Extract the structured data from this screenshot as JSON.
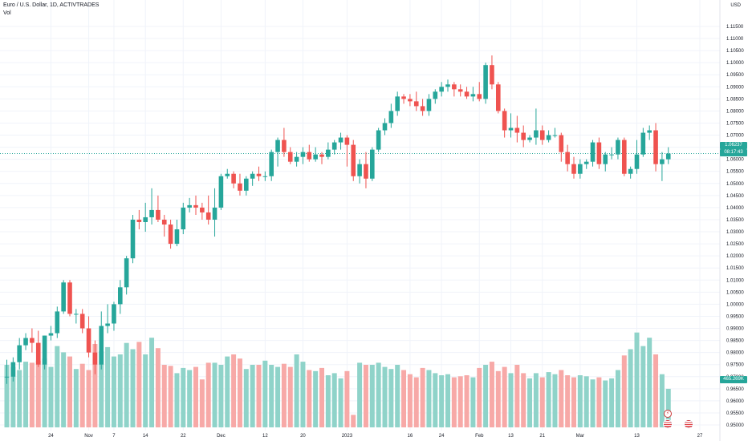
{
  "header": {
    "title": "Euro / U.S. Dollar, 1D, ACTIVTRADES",
    "volume_label": "Vol"
  },
  "price_axis": {
    "unit": "USD",
    "current_price": "1.06237",
    "countdown": "08:17:43",
    "volume_value": "465.269K"
  },
  "events": {
    "bolt_icon": "lightning-icon",
    "flag_icon": "us-flag-icon"
  },
  "colors": {
    "up": "#26a69a",
    "down": "#ef5350",
    "up_volume": "#8fd3c9",
    "down_volume": "#f7a9a7",
    "grid": "#f0f3fa",
    "last_price_line": "#26a69a"
  },
  "chart_data": {
    "type": "candlestick",
    "title": "Euro / U.S. Dollar, 1D, ACTIVTRADES",
    "ylabel": "USD",
    "ylim": [
      0.945,
      1.117
    ],
    "y_ticks": [
      "1.11500",
      "1.11000",
      "1.10500",
      "1.10000",
      "1.09500",
      "1.09000",
      "1.08500",
      "1.08000",
      "1.07500",
      "1.07000",
      "1.06500",
      "1.06000",
      "1.05500",
      "1.05000",
      "1.04500",
      "1.04000",
      "1.03500",
      "1.03000",
      "1.02500",
      "1.02000",
      "1.01500",
      "1.01000",
      "1.00500",
      "1.00000",
      "0.99500",
      "0.99000",
      "0.98500",
      "0.98000",
      "0.97500",
      "0.97000",
      "0.96500",
      "0.96000",
      "0.95500",
      "0.95000"
    ],
    "x_ticks": [
      {
        "label": "24",
        "index": 7
      },
      {
        "label": "Nov",
        "index": 13
      },
      {
        "label": "7",
        "index": 17
      },
      {
        "label": "14",
        "index": 22
      },
      {
        "label": "22",
        "index": 28
      },
      {
        "label": "Dec",
        "index": 34
      },
      {
        "label": "12",
        "index": 41
      },
      {
        "label": "20",
        "index": 47
      },
      {
        "label": "2023",
        "index": 54
      },
      {
        "label": "16",
        "index": 64
      },
      {
        "label": "24",
        "index": 69
      },
      {
        "label": "Feb",
        "index": 75
      },
      {
        "label": "13",
        "index": 80
      },
      {
        "label": "21",
        "index": 85
      },
      {
        "label": "Mar",
        "index": 91
      },
      {
        "label": "13",
        "index": 100
      },
      {
        "label": "27",
        "index": 110
      }
    ],
    "candles": [
      {
        "o": 0.97,
        "h": 0.977,
        "l": 0.967,
        "c": 0.97
      },
      {
        "o": 0.97,
        "h": 0.978,
        "l": 0.968,
        "c": 0.976
      },
      {
        "o": 0.976,
        "h": 0.986,
        "l": 0.973,
        "c": 0.983
      },
      {
        "o": 0.983,
        "h": 0.988,
        "l": 0.981,
        "c": 0.986
      },
      {
        "o": 0.986,
        "h": 0.99,
        "l": 0.98,
        "c": 0.984
      },
      {
        "o": 0.984,
        "h": 0.989,
        "l": 0.974,
        "c": 0.975
      },
      {
        "o": 0.975,
        "h": 0.987,
        "l": 0.973,
        "c": 0.987
      },
      {
        "o": 0.987,
        "h": 0.991,
        "l": 0.985,
        "c": 0.988
      },
      {
        "o": 0.988,
        "h": 0.999,
        "l": 0.986,
        "c": 0.997
      },
      {
        "o": 0.997,
        "h": 1.01,
        "l": 0.996,
        "c": 1.009
      },
      {
        "o": 1.009,
        "h": 1.01,
        "l": 0.995,
        "c": 0.996
      },
      {
        "o": 0.996,
        "h": 0.998,
        "l": 0.992,
        "c": 0.996
      },
      {
        "o": 0.996,
        "h": 0.998,
        "l": 0.988,
        "c": 0.99
      },
      {
        "o": 0.99,
        "h": 0.995,
        "l": 0.978,
        "c": 0.98
      },
      {
        "o": 0.98,
        "h": 0.985,
        "l": 0.971,
        "c": 0.975
      },
      {
        "o": 0.975,
        "h": 0.997,
        "l": 0.973,
        "c": 0.991
      },
      {
        "o": 0.991,
        "h": 1.0,
        "l": 0.988,
        "c": 0.992
      },
      {
        "o": 0.992,
        "h": 1.001,
        "l": 0.989,
        "c": 1.0
      },
      {
        "o": 1.0,
        "h": 1.01,
        "l": 0.996,
        "c": 1.007
      },
      {
        "o": 1.007,
        "h": 1.02,
        "l": 1.004,
        "c": 1.019
      },
      {
        "o": 1.019,
        "h": 1.037,
        "l": 1.017,
        "c": 1.035
      },
      {
        "o": 1.035,
        "h": 1.039,
        "l": 1.031,
        "c": 1.034
      },
      {
        "o": 1.034,
        "h": 1.042,
        "l": 1.03,
        "c": 1.036
      },
      {
        "o": 1.036,
        "h": 1.048,
        "l": 1.033,
        "c": 1.039
      },
      {
        "o": 1.039,
        "h": 1.045,
        "l": 1.034,
        "c": 1.035
      },
      {
        "o": 1.035,
        "h": 1.037,
        "l": 1.028,
        "c": 1.033
      },
      {
        "o": 1.033,
        "h": 1.035,
        "l": 1.023,
        "c": 1.025
      },
      {
        "o": 1.025,
        "h": 1.035,
        "l": 1.024,
        "c": 1.031
      },
      {
        "o": 1.031,
        "h": 1.042,
        "l": 1.029,
        "c": 1.04
      },
      {
        "o": 1.04,
        "h": 1.044,
        "l": 1.038,
        "c": 1.041
      },
      {
        "o": 1.041,
        "h": 1.045,
        "l": 1.037,
        "c": 1.04
      },
      {
        "o": 1.04,
        "h": 1.042,
        "l": 1.035,
        "c": 1.038
      },
      {
        "o": 1.038,
        "h": 1.045,
        "l": 1.033,
        "c": 1.035
      },
      {
        "o": 1.035,
        "h": 1.048,
        "l": 1.028,
        "c": 1.04
      },
      {
        "o": 1.04,
        "h": 1.054,
        "l": 1.039,
        "c": 1.053
      },
      {
        "o": 1.053,
        "h": 1.056,
        "l": 1.052,
        "c": 1.054
      },
      {
        "o": 1.054,
        "h": 1.055,
        "l": 1.048,
        "c": 1.05
      },
      {
        "o": 1.05,
        "h": 1.054,
        "l": 1.045,
        "c": 1.047
      },
      {
        "o": 1.047,
        "h": 1.053,
        "l": 1.045,
        "c": 1.052
      },
      {
        "o": 1.052,
        "h": 1.055,
        "l": 1.049,
        "c": 1.054
      },
      {
        "o": 1.054,
        "h": 1.057,
        "l": 1.051,
        "c": 1.053
      },
      {
        "o": 1.053,
        "h": 1.055,
        "l": 1.051,
        "c": 1.053
      },
      {
        "o": 1.053,
        "h": 1.064,
        "l": 1.051,
        "c": 1.063
      },
      {
        "o": 1.063,
        "h": 1.069,
        "l": 1.057,
        "c": 1.068
      },
      {
        "o": 1.068,
        "h": 1.073,
        "l": 1.061,
        "c": 1.063
      },
      {
        "o": 1.063,
        "h": 1.065,
        "l": 1.058,
        "c": 1.059
      },
      {
        "o": 1.059,
        "h": 1.063,
        "l": 1.057,
        "c": 1.061
      },
      {
        "o": 1.061,
        "h": 1.065,
        "l": 1.058,
        "c": 1.063
      },
      {
        "o": 1.063,
        "h": 1.066,
        "l": 1.059,
        "c": 1.06
      },
      {
        "o": 1.06,
        "h": 1.065,
        "l": 1.059,
        "c": 1.062
      },
      {
        "o": 1.062,
        "h": 1.063,
        "l": 1.058,
        "c": 1.061
      },
      {
        "o": 1.061,
        "h": 1.067,
        "l": 1.06,
        "c": 1.064
      },
      {
        "o": 1.064,
        "h": 1.068,
        "l": 1.062,
        "c": 1.067
      },
      {
        "o": 1.067,
        "h": 1.071,
        "l": 1.064,
        "c": 1.069
      },
      {
        "o": 1.069,
        "h": 1.07,
        "l": 1.057,
        "c": 1.066
      },
      {
        "o": 1.066,
        "h": 1.068,
        "l": 1.051,
        "c": 1.053
      },
      {
        "o": 1.053,
        "h": 1.06,
        "l": 1.05,
        "c": 1.058
      },
      {
        "o": 1.058,
        "h": 1.063,
        "l": 1.048,
        "c": 1.052
      },
      {
        "o": 1.052,
        "h": 1.065,
        "l": 1.051,
        "c": 1.064
      },
      {
        "o": 1.064,
        "h": 1.073,
        "l": 1.063,
        "c": 1.072
      },
      {
        "o": 1.072,
        "h": 1.077,
        "l": 1.07,
        "c": 1.075
      },
      {
        "o": 1.075,
        "h": 1.083,
        "l": 1.073,
        "c": 1.08
      },
      {
        "o": 1.08,
        "h": 1.088,
        "l": 1.078,
        "c": 1.086
      },
      {
        "o": 1.086,
        "h": 1.087,
        "l": 1.083,
        "c": 1.085
      },
      {
        "o": 1.085,
        "h": 1.087,
        "l": 1.082,
        "c": 1.084
      },
      {
        "o": 1.084,
        "h": 1.088,
        "l": 1.08,
        "c": 1.082
      },
      {
        "o": 1.082,
        "h": 1.085,
        "l": 1.078,
        "c": 1.08
      },
      {
        "o": 1.08,
        "h": 1.087,
        "l": 1.078,
        "c": 1.085
      },
      {
        "o": 1.085,
        "h": 1.089,
        "l": 1.083,
        "c": 1.088
      },
      {
        "o": 1.088,
        "h": 1.092,
        "l": 1.086,
        "c": 1.09
      },
      {
        "o": 1.09,
        "h": 1.093,
        "l": 1.088,
        "c": 1.091
      },
      {
        "o": 1.091,
        "h": 1.092,
        "l": 1.086,
        "c": 1.089
      },
      {
        "o": 1.089,
        "h": 1.091,
        "l": 1.086,
        "c": 1.088
      },
      {
        "o": 1.088,
        "h": 1.09,
        "l": 1.085,
        "c": 1.086
      },
      {
        "o": 1.086,
        "h": 1.09,
        "l": 1.084,
        "c": 1.087
      },
      {
        "o": 1.087,
        "h": 1.092,
        "l": 1.084,
        "c": 1.085
      },
      {
        "o": 1.085,
        "h": 1.1,
        "l": 1.083,
        "c": 1.099
      },
      {
        "o": 1.099,
        "h": 1.103,
        "l": 1.089,
        "c": 1.091
      },
      {
        "o": 1.091,
        "h": 1.092,
        "l": 1.079,
        "c": 1.08
      },
      {
        "o": 1.08,
        "h": 1.081,
        "l": 1.069,
        "c": 1.072
      },
      {
        "o": 1.072,
        "h": 1.079,
        "l": 1.069,
        "c": 1.073
      },
      {
        "o": 1.073,
        "h": 1.078,
        "l": 1.067,
        "c": 1.071
      },
      {
        "o": 1.071,
        "h": 1.074,
        "l": 1.065,
        "c": 1.068
      },
      {
        "o": 1.068,
        "h": 1.07,
        "l": 1.067,
        "c": 1.069
      },
      {
        "o": 1.069,
        "h": 1.081,
        "l": 1.066,
        "c": 1.072
      },
      {
        "o": 1.072,
        "h": 1.074,
        "l": 1.066,
        "c": 1.068
      },
      {
        "o": 1.068,
        "h": 1.072,
        "l": 1.067,
        "c": 1.07
      },
      {
        "o": 1.07,
        "h": 1.073,
        "l": 1.069,
        "c": 1.07
      },
      {
        "o": 1.07,
        "h": 1.071,
        "l": 1.059,
        "c": 1.063
      },
      {
        "o": 1.063,
        "h": 1.066,
        "l": 1.055,
        "c": 1.058
      },
      {
        "o": 1.058,
        "h": 1.061,
        "l": 1.052,
        "c": 1.054
      },
      {
        "o": 1.054,
        "h": 1.06,
        "l": 1.052,
        "c": 1.058
      },
      {
        "o": 1.058,
        "h": 1.06,
        "l": 1.056,
        "c": 1.059
      },
      {
        "o": 1.059,
        "h": 1.068,
        "l": 1.057,
        "c": 1.067
      },
      {
        "o": 1.067,
        "h": 1.069,
        "l": 1.056,
        "c": 1.058
      },
      {
        "o": 1.058,
        "h": 1.063,
        "l": 1.055,
        "c": 1.062
      },
      {
        "o": 1.062,
        "h": 1.065,
        "l": 1.06,
        "c": 1.062
      },
      {
        "o": 1.062,
        "h": 1.069,
        "l": 1.06,
        "c": 1.068
      },
      {
        "o": 1.068,
        "h": 1.069,
        "l": 1.053,
        "c": 1.054
      },
      {
        "o": 1.054,
        "h": 1.057,
        "l": 1.052,
        "c": 1.056
      },
      {
        "o": 1.056,
        "h": 1.068,
        "l": 1.054,
        "c": 1.062
      },
      {
        "o": 1.062,
        "h": 1.073,
        "l": 1.061,
        "c": 1.071
      },
      {
        "o": 1.071,
        "h": 1.074,
        "l": 1.068,
        "c": 1.072
      },
      {
        "o": 1.072,
        "h": 1.075,
        "l": 1.055,
        "c": 1.058
      },
      {
        "o": 1.058,
        "h": 1.063,
        "l": 1.051,
        "c": 1.06
      },
      {
        "o": 1.06,
        "h": 1.065,
        "l": 1.058,
        "c": 1.06237
      }
    ],
    "volume": [
      0.6,
      0.58,
      0.55,
      0.63,
      0.62,
      0.64,
      0.66,
      0.58,
      0.78,
      0.72,
      0.68,
      0.56,
      0.61,
      0.55,
      0.8,
      0.73,
      0.77,
      0.68,
      0.7,
      0.81,
      0.75,
      0.82,
      0.7,
      0.86,
      0.76,
      0.6,
      0.59,
      0.52,
      0.57,
      0.55,
      0.58,
      0.46,
      0.62,
      0.62,
      0.6,
      0.68,
      0.7,
      0.66,
      0.56,
      0.6,
      0.6,
      0.64,
      0.6,
      0.58,
      0.61,
      0.58,
      0.7,
      0.63,
      0.55,
      0.54,
      0.57,
      0.5,
      0.52,
      0.47,
      0.54,
      0.12,
      0.62,
      0.6,
      0.6,
      0.62,
      0.58,
      0.56,
      0.6,
      0.55,
      0.51,
      0.48,
      0.57,
      0.55,
      0.52,
      0.5,
      0.51,
      0.48,
      0.49,
      0.5,
      0.48,
      0.57,
      0.6,
      0.63,
      0.54,
      0.58,
      0.52,
      0.6,
      0.52,
      0.47,
      0.52,
      0.48,
      0.53,
      0.51,
      0.55,
      0.5,
      0.48,
      0.5,
      0.49,
      0.46,
      0.48,
      0.45,
      0.47,
      0.55,
      0.69,
      0.75,
      0.91,
      0.78,
      0.86,
      0.7,
      0.51,
      0.37
    ]
  }
}
